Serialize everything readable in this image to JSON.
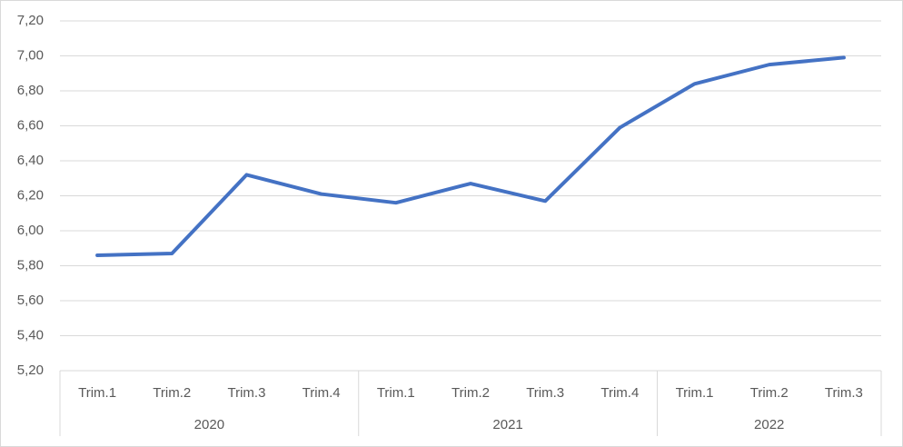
{
  "chart_data": {
    "type": "line",
    "groups": [
      {
        "name": "2020",
        "categories": [
          "Trim.1",
          "Trim.2",
          "Trim.3",
          "Trim.4"
        ]
      },
      {
        "name": "2021",
        "categories": [
          "Trim.1",
          "Trim.2",
          "Trim.3",
          "Trim.4"
        ]
      },
      {
        "name": "2022",
        "categories": [
          "Trim.1",
          "Trim.2",
          "Trim.3"
        ]
      }
    ],
    "values": [
      5.86,
      5.87,
      6.32,
      6.21,
      6.16,
      6.27,
      6.17,
      6.59,
      6.84,
      6.95,
      6.99
    ],
    "color": "#4472c4",
    "ylim": [
      5.2,
      7.2
    ],
    "yticks": [
      {
        "value": 5.2,
        "label": "5,20"
      },
      {
        "value": 5.4,
        "label": "5,40"
      },
      {
        "value": 5.6,
        "label": "5,60"
      },
      {
        "value": 5.8,
        "label": "5,80"
      },
      {
        "value": 6.0,
        "label": "6,00"
      },
      {
        "value": 6.2,
        "label": "6,20"
      },
      {
        "value": 6.4,
        "label": "6,40"
      },
      {
        "value": 6.6,
        "label": "6,60"
      },
      {
        "value": 6.8,
        "label": "6,80"
      },
      {
        "value": 7.0,
        "label": "7,00"
      },
      {
        "value": 7.2,
        "label": "7,20"
      }
    ],
    "grid": true
  }
}
